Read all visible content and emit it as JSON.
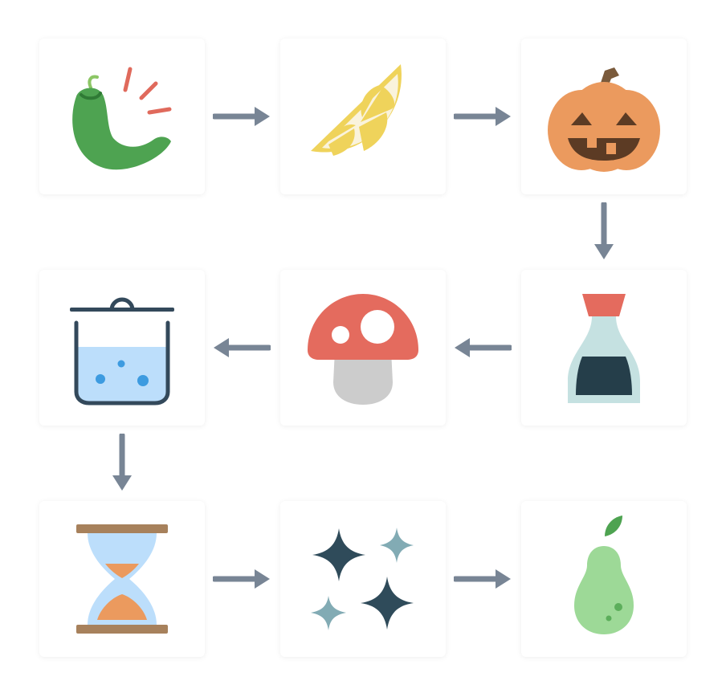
{
  "nodes": [
    {
      "id": "pepper",
      "icon": "hot-pepper-icon"
    },
    {
      "id": "lemon",
      "icon": "lemon-slice-icon"
    },
    {
      "id": "pumpkin",
      "icon": "jack-o-lantern-icon"
    },
    {
      "id": "soy-sauce",
      "icon": "soy-sauce-bottle-icon"
    },
    {
      "id": "mushroom",
      "icon": "mushroom-icon"
    },
    {
      "id": "pot",
      "icon": "boiling-pot-icon"
    },
    {
      "id": "hourglass",
      "icon": "hourglass-icon"
    },
    {
      "id": "sparkles",
      "icon": "sparkles-icon"
    },
    {
      "id": "pear",
      "icon": "pear-icon"
    }
  ],
  "flow": [
    {
      "from": "pepper",
      "to": "lemon",
      "direction": "right"
    },
    {
      "from": "lemon",
      "to": "pumpkin",
      "direction": "right"
    },
    {
      "from": "pumpkin",
      "to": "soy-sauce",
      "direction": "down"
    },
    {
      "from": "soy-sauce",
      "to": "mushroom",
      "direction": "left"
    },
    {
      "from": "mushroom",
      "to": "pot",
      "direction": "left"
    },
    {
      "from": "pot",
      "to": "hourglass",
      "direction": "down"
    },
    {
      "from": "hourglass",
      "to": "sparkles",
      "direction": "right"
    },
    {
      "from": "sparkles",
      "to": "pear",
      "direction": "right"
    }
  ],
  "colors": {
    "arrow": "#788595",
    "pepper": "#4ea351",
    "pepper_stem": "#8cc665",
    "heat_lines": "#e06a5c",
    "lemon": "#efd35b",
    "lemon_pith": "#faf3dc",
    "pumpkin": "#eb9a5e",
    "pumpkin_stem": "#7a5a3b",
    "pumpkin_face": "#5c3b24",
    "soy_cap": "#e46b5e",
    "soy_bottle": "#c5e1e1",
    "soy_liquid": "#253e4a",
    "mushroom_cap": "#e46b5e",
    "mushroom_stem": "#cccccc",
    "pot_outline": "#33495b",
    "pot_water": "#bcdefb",
    "pot_bubbles": "#3d9be0",
    "hourglass_frame": "#a7815c",
    "hourglass_glass": "#bcdefb",
    "hourglass_sand": "#eb9a5e",
    "sparkle_dark": "#2f4b5a",
    "sparkle_light": "#82abb4",
    "pear": "#9dd997",
    "pear_leaf": "#4ea351",
    "pear_spots": "#5cae5b"
  }
}
